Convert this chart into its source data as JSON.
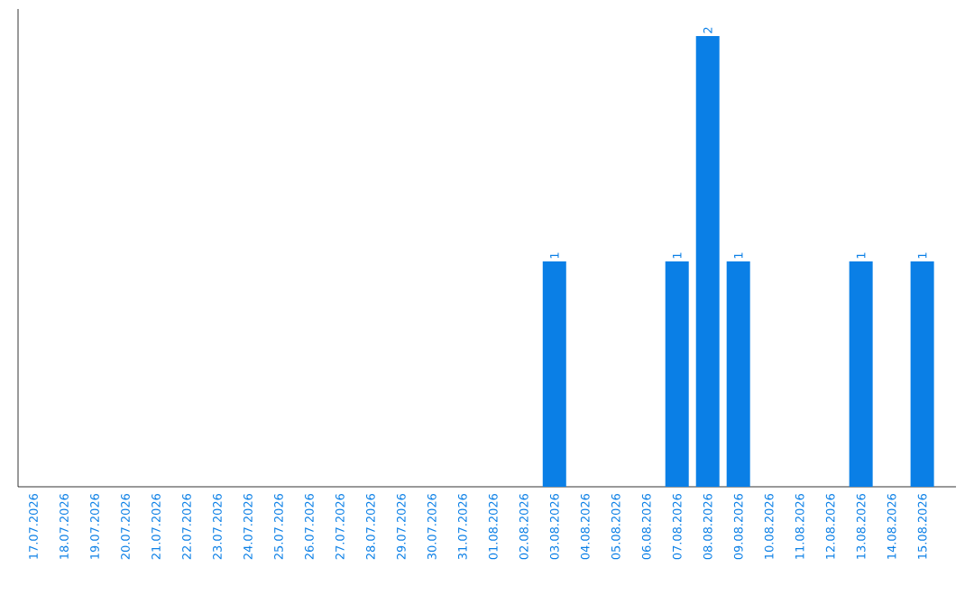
{
  "chart_data": {
    "type": "bar",
    "categories": [
      "17.07.2026",
      "18.07.2026",
      "19.07.2026",
      "20.07.2026",
      "21.07.2026",
      "22.07.2026",
      "23.07.2026",
      "24.07.2026",
      "25.07.2026",
      "26.07.2026",
      "27.07.2026",
      "28.07.2026",
      "29.07.2026",
      "30.07.2026",
      "31.07.2026",
      "01.08.2026",
      "02.08.2026",
      "03.08.2026",
      "04.08.2026",
      "05.08.2026",
      "06.08.2026",
      "07.08.2026",
      "08.08.2026",
      "09.08.2026",
      "10.08.2026",
      "11.08.2026",
      "12.08.2026",
      "13.08.2026",
      "14.08.2026",
      "15.08.2026"
    ],
    "values": [
      null,
      null,
      null,
      null,
      null,
      null,
      null,
      null,
      null,
      null,
      null,
      null,
      null,
      null,
      null,
      null,
      null,
      1,
      null,
      null,
      null,
      1,
      2,
      1,
      null,
      null,
      null,
      1,
      null,
      1
    ],
    "data_labels": true,
    "color": "#0a7fe6"
  }
}
